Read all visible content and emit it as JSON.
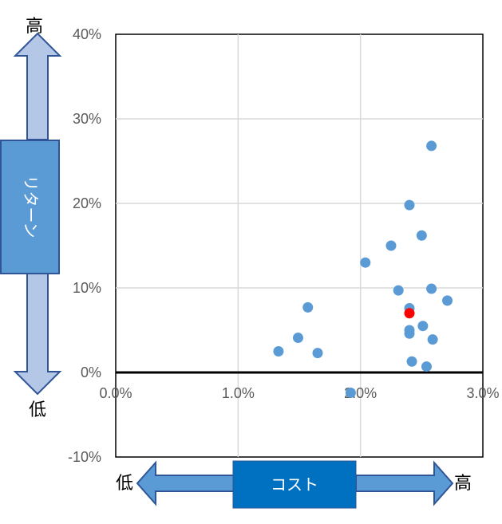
{
  "chart_data": {
    "type": "scatter",
    "title": "",
    "xlim": [
      0,
      3
    ],
    "ylim": [
      -10,
      40
    ],
    "x_ticks": [
      "0.0%",
      "1.0%",
      "2.0%",
      "3.0%"
    ],
    "y_ticks": [
      "-10%",
      "0%",
      "10%",
      "20%",
      "30%",
      "40%"
    ],
    "grid": true,
    "series": [
      {
        "color": "#5B9BD5",
        "points": [
          {
            "x": 1.33,
            "y": 2.5
          },
          {
            "x": 1.49,
            "y": 4.1
          },
          {
            "x": 1.57,
            "y": 7.7
          },
          {
            "x": 1.65,
            "y": 2.3
          },
          {
            "x": 1.92,
            "y": -2.4
          },
          {
            "x": 2.04,
            "y": 13.0
          },
          {
            "x": 2.25,
            "y": 15.0
          },
          {
            "x": 2.31,
            "y": 9.7
          },
          {
            "x": 2.4,
            "y": 19.8
          },
          {
            "x": 2.4,
            "y": 7.6
          },
          {
            "x": 2.4,
            "y": 5.0
          },
          {
            "x": 2.4,
            "y": 4.6
          },
          {
            "x": 2.42,
            "y": 1.3
          },
          {
            "x": 2.5,
            "y": 16.2
          },
          {
            "x": 2.51,
            "y": 5.5
          },
          {
            "x": 2.54,
            "y": 0.7
          },
          {
            "x": 2.58,
            "y": 26.8
          },
          {
            "x": 2.58,
            "y": 9.9
          },
          {
            "x": 2.59,
            "y": 3.9
          },
          {
            "x": 2.71,
            "y": 8.5
          }
        ]
      },
      {
        "color": "#FF0000",
        "points": [
          {
            "x": 2.4,
            "y": 7.0
          }
        ]
      }
    ]
  },
  "y_indicator": {
    "label": "リターン",
    "top_label": "高",
    "bottom_label": "低"
  },
  "x_indicator": {
    "label": "コスト",
    "left_label": "低",
    "right_label": "高"
  },
  "colors": {
    "arrow_fill": "#B4C7E7",
    "arrow_stroke": "#2F5597",
    "label_box": "#5B9BD5",
    "cost_box": "#0070C0",
    "grid": "#D9D9D9",
    "axis": "#000000"
  }
}
